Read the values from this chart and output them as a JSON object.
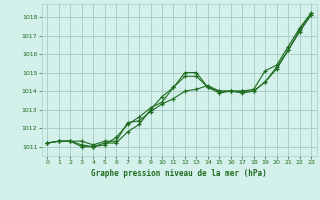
{
  "background_color": "#d4f0eb",
  "grid_color": "#aacfc8",
  "line_color": "#1e6b1e",
  "title": "Graphe pression niveau de la mer (hPa)",
  "xlim": [
    -0.5,
    23.5
  ],
  "ylim": [
    1010.5,
    1018.7
  ],
  "yticks": [
    1011,
    1012,
    1013,
    1014,
    1015,
    1016,
    1017,
    1018
  ],
  "xticks": [
    0,
    1,
    2,
    3,
    4,
    5,
    6,
    7,
    8,
    9,
    10,
    11,
    12,
    13,
    14,
    15,
    16,
    17,
    18,
    19,
    20,
    21,
    22,
    23
  ],
  "series": [
    [
      1011.2,
      1011.3,
      1011.3,
      1011.1,
      1011.0,
      1011.2,
      1011.2,
      1011.8,
      1012.2,
      1013.0,
      1013.7,
      1014.2,
      1014.8,
      1014.8,
      1014.2,
      1014.0,
      1014.0,
      1014.0,
      1014.0,
      1014.5,
      1015.2,
      1016.2,
      1017.2,
      1018.1
    ],
    [
      1011.2,
      1011.3,
      1011.3,
      1011.0,
      1011.0,
      1011.1,
      1011.5,
      1012.2,
      1012.6,
      1013.1,
      1013.4,
      1014.2,
      1015.0,
      1015.0,
      1014.2,
      1013.9,
      1014.0,
      1013.9,
      1014.0,
      1014.5,
      1015.3,
      1016.2,
      1017.3,
      1018.2
    ],
    [
      1011.2,
      1011.3,
      1011.3,
      1011.3,
      1011.1,
      1011.3,
      1011.3,
      1012.3,
      1012.4,
      1012.9,
      1013.3,
      1013.6,
      1014.0,
      1014.1,
      1014.3,
      1014.0,
      1014.0,
      1014.0,
      1014.1,
      1015.1,
      1015.4,
      1016.4,
      1017.4,
      1018.2
    ]
  ]
}
